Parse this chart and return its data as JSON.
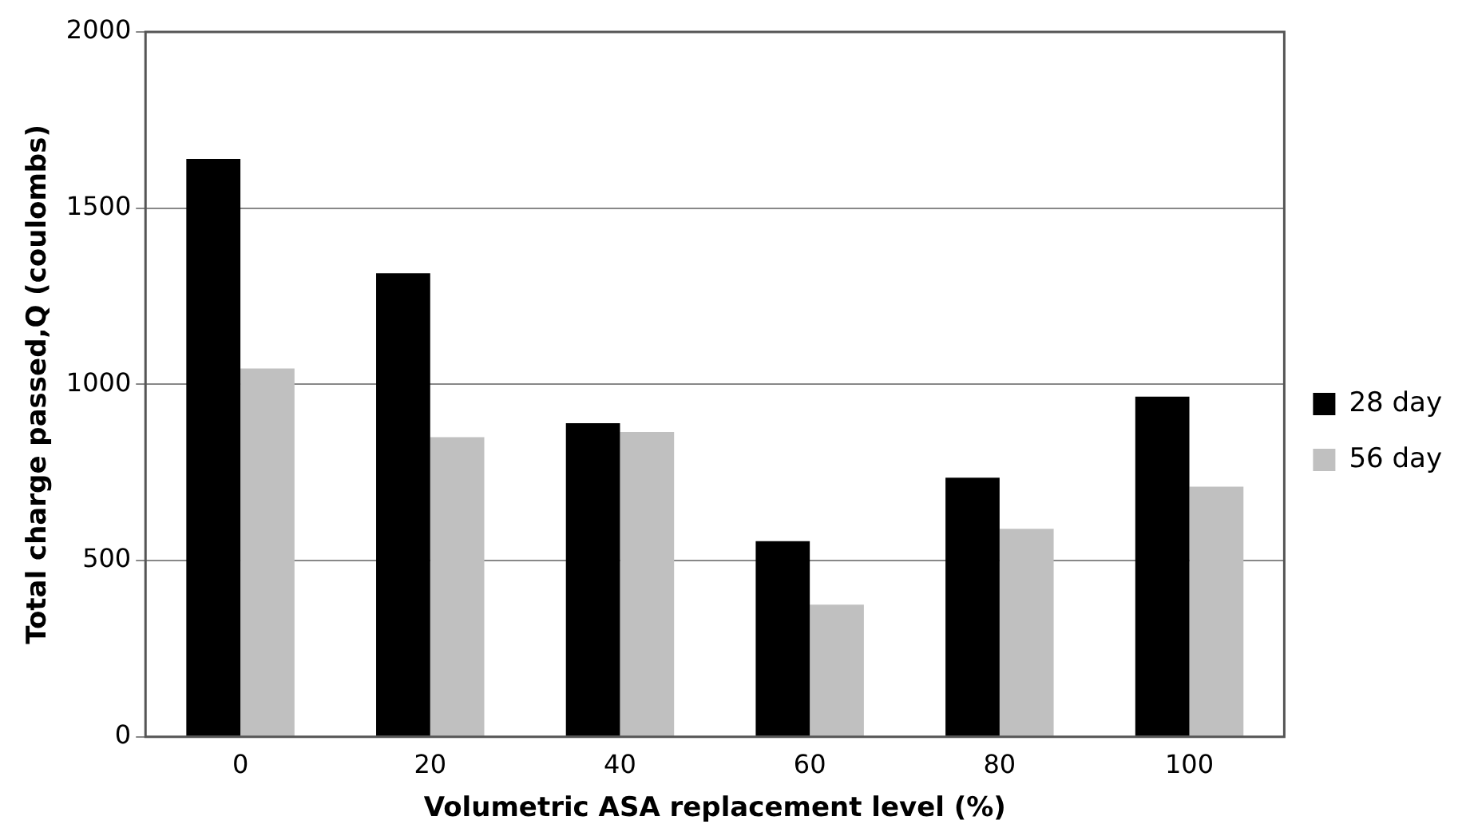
{
  "chart_data": {
    "type": "bar",
    "xlabel": "Volumetric ASA replacement level (%)",
    "ylabel": "Total charge passed,Q (coulombs)",
    "categories": [
      "0",
      "20",
      "40",
      "60",
      "80",
      "100"
    ],
    "series": [
      {
        "name": "28 day",
        "color": "#000000",
        "values": [
          1640,
          1315,
          890,
          555,
          735,
          965
        ]
      },
      {
        "name": "56 day",
        "color": "#c0c0c0",
        "values": [
          1045,
          850,
          865,
          375,
          590,
          710
        ]
      }
    ],
    "ylim": [
      0,
      2000
    ],
    "yticks": [
      0,
      500,
      1000,
      1500,
      2000
    ],
    "grid": "y",
    "legend": "right"
  }
}
